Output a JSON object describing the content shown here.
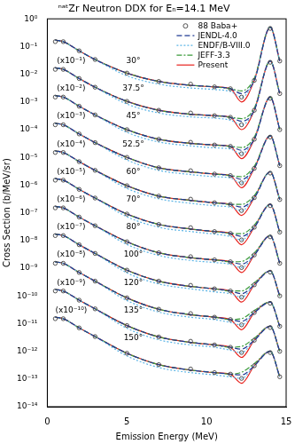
{
  "chart_data": {
    "type": "line",
    "title": "ⁿᵃᵗZr Neutron DDX for Eₙ=14.1 MeV",
    "x_label": "Emission Energy (MeV)",
    "y_label": "Cross Section (b/MeV/sr)",
    "log": "y",
    "grid": false,
    "legend": "upper right",
    "xlim": [
      0,
      15
    ],
    "xticks": [
      0,
      5,
      10,
      15
    ],
    "ylim": [
      1e-14,
      1
    ],
    "yticks": [
      {
        "value": 1,
        "label": "10⁰"
      },
      {
        "value": 0.1,
        "label": "10⁻¹"
      },
      {
        "value": 0.01,
        "label": "10⁻²"
      },
      {
        "value": 0.001,
        "label": "10⁻³"
      },
      {
        "value": 0.0001,
        "label": "10⁻⁴"
      },
      {
        "value": 1e-05,
        "label": "10⁻⁵"
      },
      {
        "value": 1e-06,
        "label": "10⁻⁶"
      },
      {
        "value": 1e-07,
        "label": "10⁻⁷"
      },
      {
        "value": 1e-08,
        "label": "10⁻⁸"
      },
      {
        "value": 1e-09,
        "label": "10⁻⁹"
      },
      {
        "value": 1e-10,
        "label": "10⁻¹⁰"
      },
      {
        "value": 1e-11,
        "label": "10⁻¹¹"
      },
      {
        "value": 1e-12,
        "label": "10⁻¹²"
      },
      {
        "value": 1e-13,
        "label": "10⁻¹³"
      },
      {
        "value": 1e-14,
        "label": "10⁻¹⁴"
      }
    ],
    "x": [
      0.5,
      1,
      2,
      3,
      5,
      7,
      9,
      10.5,
      11.5,
      12.2,
      13,
      14,
      14.6
    ],
    "series": [
      {
        "name": "88 Baba+",
        "color": "#404040",
        "marker": "circle",
        "line_style": "none",
        "values": [
          [
            0.15,
            0.15,
            0.07,
            0.034,
            0.011,
            0.0055,
            0.0044,
            0.0035,
            0.003,
            0.0015,
            0.006,
            0.45,
            0.03
          ],
          [
            0.015,
            0.015,
            0.007,
            0.0034,
            0.00105,
            0.0005,
            0.0004,
            0.00032,
            0.00028,
            0.00015,
            0.0005,
            0.027,
            0.002
          ],
          [
            0.0015,
            0.0015,
            0.0007,
            0.00034,
            0.0001,
            4.5e-05,
            3.5e-05,
            2.8e-05,
            2.5e-05,
            1.35e-05,
            4.5e-05,
            0.00135,
            0.0001
          ],
          [
            0.00015,
            0.00015,
            7e-05,
            3.4e-05,
            1e-05,
            4.2e-06,
            3.3e-06,
            2.5e-06,
            2.2e-06,
            1.2e-06,
            4e-06,
            5.4e-05,
            5e-06
          ],
          [
            1.5e-05,
            1.5e-05,
            7e-06,
            3.4e-06,
            9.5e-07,
            4e-07,
            3.1e-07,
            2.3e-07,
            2e-07,
            1.2e-07,
            3.5e-07,
            2.7e-06,
            3e-07
          ],
          [
            1.5e-06,
            1.5e-06,
            7e-07,
            3.4e-07,
            9e-08,
            3.8e-08,
            2.9e-08,
            2.1e-08,
            1.8e-08,
            1.05e-08,
            3e-08,
            1.8e-07,
            2e-08
          ],
          [
            1.5e-07,
            1.5e-07,
            7e-08,
            3.4e-08,
            9e-09,
            3.6e-09,
            2.6e-09,
            2e-09,
            1.7e-09,
            1.05e-09,
            3e-09,
            1.35e-08,
            1.5e-09
          ],
          [
            1.5e-08,
            1.5e-08,
            7e-09,
            3.4e-09,
            8.5e-10,
            3.4e-10,
            2.4e-10,
            1.8e-10,
            1.5e-10,
            9e-11,
            2.5e-10,
            7.2e-10,
            1e-10
          ],
          [
            1.5e-09,
            1.5e-09,
            7e-10,
            3.4e-10,
            8.5e-11,
            3.3e-11,
            2.3e-11,
            1.7e-11,
            1.4e-11,
            9e-12,
            2.5e-11,
            5.4e-11,
            8e-12
          ],
          [
            1.5e-10,
            1.5e-10,
            7e-11,
            3.4e-11,
            8.5e-12,
            3.3e-12,
            2.3e-12,
            1.7e-12,
            1.4e-12,
            9e-13,
            2.5e-12,
            7.2e-12,
            1e-12
          ],
          [
            1.5e-11,
            1.5e-11,
            7e-12,
            3.4e-12,
            8.5e-13,
            3.3e-13,
            2.3e-13,
            1.7e-13,
            1.5e-13,
            1.05e-13,
            3e-13,
            9e-13,
            1.2e-13
          ]
        ]
      },
      {
        "name": "JENDL-4.0",
        "color": "#1f3a93",
        "line_style": "dashed",
        "values": [
          [
            0.17,
            0.15,
            0.07,
            0.034,
            0.011,
            0.0055,
            0.004,
            0.0035,
            0.003,
            0.002,
            0.006,
            0.5,
            0.03
          ],
          [
            0.017,
            0.015,
            0.007,
            0.0034,
            0.00105,
            0.0005,
            0.00036,
            0.00032,
            0.00028,
            0.0002,
            0.0005,
            0.03,
            0.002
          ],
          [
            0.0017,
            0.0015,
            0.0007,
            0.00034,
            0.0001,
            4.5e-05,
            3.2e-05,
            2.8e-05,
            2.5e-05,
            1.8e-05,
            4.5e-05,
            0.0015,
            0.0001
          ],
          [
            0.00017,
            0.00015,
            7e-05,
            3.4e-05,
            1e-05,
            4.2e-06,
            3e-06,
            2.5e-06,
            2.2e-06,
            1.6e-06,
            4e-06,
            6e-05,
            5e-06
          ],
          [
            1.7e-05,
            1.5e-05,
            7e-06,
            3.4e-06,
            9.5e-07,
            4e-07,
            2.8e-07,
            2.3e-07,
            2e-07,
            1.6e-07,
            3.5e-07,
            3e-06,
            3e-07
          ],
          [
            1.7e-06,
            1.5e-06,
            7e-07,
            3.4e-07,
            9e-08,
            3.8e-08,
            2.6e-08,
            2.1e-08,
            1.8e-08,
            1.4e-08,
            3e-08,
            2e-07,
            2e-08
          ],
          [
            1.7e-07,
            1.5e-07,
            7e-08,
            3.4e-08,
            9e-09,
            3.6e-09,
            2.4e-09,
            2e-09,
            1.7e-09,
            1.4e-09,
            3e-09,
            1.5e-08,
            1.5e-09
          ],
          [
            1.7e-08,
            1.5e-08,
            7e-09,
            3.4e-09,
            8.5e-10,
            3.4e-10,
            2.2e-10,
            1.8e-10,
            1.5e-10,
            1.2e-10,
            2.5e-10,
            8e-10,
            1e-10
          ],
          [
            1.7e-09,
            1.5e-09,
            7e-10,
            3.4e-10,
            8.5e-11,
            3.3e-11,
            2.1e-11,
            1.7e-11,
            1.4e-11,
            1.2e-11,
            2.5e-11,
            6e-11,
            8e-12
          ],
          [
            1.7e-10,
            1.5e-10,
            7e-11,
            3.4e-11,
            8.5e-12,
            3.3e-12,
            2.1e-12,
            1.7e-12,
            1.4e-12,
            1.2e-12,
            2.5e-12,
            8e-12,
            1e-12
          ],
          [
            1.7e-11,
            1.5e-11,
            7e-12,
            3.4e-12,
            8.5e-13,
            3.3e-13,
            2.1e-13,
            1.7e-13,
            1.5e-13,
            1.4e-13,
            3e-13,
            1e-12,
            1.2e-13
          ]
        ]
      },
      {
        "name": "ENDF/B-VIII.0",
        "color": "#5ab4e6",
        "line_style": "dotted",
        "values": [
          [
            0.17,
            0.15,
            0.07,
            0.034,
            0.0088,
            0.0044,
            0.0032,
            0.0028,
            0.0024,
            0.0015,
            0.006,
            0.5,
            0.03
          ],
          [
            0.017,
            0.015,
            0.007,
            0.0034,
            0.00084,
            0.0004,
            0.00029,
            0.00026,
            0.00022,
            0.00015,
            0.0005,
            0.03,
            0.002
          ],
          [
            0.0017,
            0.0015,
            0.0007,
            0.00034,
            8e-05,
            3.6e-05,
            2.6e-05,
            2.2e-05,
            2e-05,
            1.35e-05,
            4.5e-05,
            0.0015,
            0.0001
          ],
          [
            0.00017,
            0.00015,
            7e-05,
            3.4e-05,
            8e-06,
            3.4e-06,
            2.4e-06,
            2e-06,
            1.8e-06,
            1.2e-06,
            4e-06,
            6e-05,
            5e-06
          ],
          [
            1.7e-05,
            1.5e-05,
            7e-06,
            3.4e-06,
            7.6e-07,
            3.2e-07,
            2.2e-07,
            1.8e-07,
            1.6e-07,
            1.2e-07,
            3.5e-07,
            3e-06,
            3e-07
          ],
          [
            1.7e-06,
            1.5e-06,
            7e-07,
            3.4e-07,
            7.2e-08,
            3e-08,
            2.1e-08,
            1.7e-08,
            1.4e-08,
            1.05e-08,
            3e-08,
            2e-07,
            2e-08
          ],
          [
            1.7e-07,
            1.5e-07,
            7e-08,
            3.4e-08,
            7.2e-09,
            2.9e-09,
            1.9e-09,
            1.6e-09,
            1.4e-09,
            1.05e-09,
            3e-09,
            1.5e-08,
            1.5e-09
          ],
          [
            1.7e-08,
            1.5e-08,
            7e-09,
            3.4e-09,
            6.8e-10,
            2.7e-10,
            1.8e-10,
            1.4e-10,
            1.2e-10,
            9e-11,
            2.5e-10,
            8e-10,
            1e-10
          ],
          [
            1.7e-09,
            1.5e-09,
            7e-10,
            3.4e-10,
            6.8e-11,
            2.6e-11,
            1.7e-11,
            1.4e-11,
            1.1e-11,
            9e-12,
            2.5e-11,
            6e-11,
            8e-12
          ],
          [
            1.7e-10,
            1.5e-10,
            7e-11,
            3.4e-11,
            6.8e-12,
            2.6e-12,
            1.7e-12,
            1.4e-12,
            1.1e-12,
            9e-13,
            2.5e-12,
            8e-12,
            1e-12
          ],
          [
            1.7e-11,
            1.5e-11,
            7e-12,
            3.4e-12,
            6.8e-13,
            2.6e-13,
            1.7e-13,
            1.4e-13,
            1.2e-13,
            1.05e-13,
            3e-13,
            1e-12,
            1.2e-13
          ]
        ]
      },
      {
        "name": "JEFF-3.3",
        "color": "#3a9a3a",
        "line_style": "dashdot",
        "values": [
          [
            0.17,
            0.15,
            0.07,
            0.034,
            0.011,
            0.0055,
            0.004,
            0.0035,
            0.003,
            0.0025,
            0.0072,
            0.5,
            0.03
          ],
          [
            0.017,
            0.015,
            0.007,
            0.0034,
            0.00105,
            0.0005,
            0.00036,
            0.00032,
            0.00028,
            0.00025,
            0.0006,
            0.03,
            0.002
          ],
          [
            0.0017,
            0.0015,
            0.0007,
            0.00034,
            0.0001,
            4.5e-05,
            3.2e-05,
            2.8e-05,
            2.5e-05,
            2.25e-05,
            5.4e-05,
            0.0015,
            0.0001
          ],
          [
            0.00017,
            0.00015,
            7e-05,
            3.4e-05,
            1e-05,
            4.2e-06,
            3e-06,
            2.5e-06,
            2.2e-06,
            2e-06,
            4.8e-06,
            6e-05,
            5e-06
          ],
          [
            1.7e-05,
            1.5e-05,
            7e-06,
            3.4e-06,
            9.5e-07,
            4e-07,
            2.8e-07,
            2.3e-07,
            2e-07,
            2e-07,
            4.2e-07,
            3e-06,
            3e-07
          ],
          [
            1.7e-06,
            1.5e-06,
            7e-07,
            3.4e-07,
            9e-08,
            3.8e-08,
            2.6e-08,
            2.1e-08,
            1.8e-08,
            1.75e-08,
            3.6e-08,
            2e-07,
            2e-08
          ],
          [
            1.7e-07,
            1.5e-07,
            7e-08,
            3.4e-08,
            9e-09,
            3.6e-09,
            2.4e-09,
            2e-09,
            1.7e-09,
            1.75e-09,
            3.6e-09,
            1.5e-08,
            1.5e-09
          ],
          [
            1.7e-08,
            1.5e-08,
            7e-09,
            3.4e-09,
            8.5e-10,
            3.4e-10,
            2.2e-10,
            1.8e-10,
            1.5e-10,
            1.5e-10,
            3e-10,
            8e-10,
            1e-10
          ],
          [
            1.7e-09,
            1.5e-09,
            7e-10,
            3.4e-10,
            8.5e-11,
            3.3e-11,
            2.1e-11,
            1.7e-11,
            1.4e-11,
            1.5e-11,
            3e-11,
            6e-11,
            8e-12
          ],
          [
            1.7e-10,
            1.5e-10,
            7e-11,
            3.4e-11,
            8.5e-12,
            3.3e-12,
            2.1e-12,
            1.7e-12,
            1.4e-12,
            1.5e-12,
            3e-12,
            8e-12,
            1e-12
          ],
          [
            1.7e-11,
            1.5e-11,
            7e-12,
            3.4e-12,
            8.5e-13,
            3.3e-13,
            2.1e-13,
            1.7e-13,
            1.5e-13,
            1.75e-13,
            3.6e-13,
            1e-12,
            1.2e-13
          ]
        ]
      },
      {
        "name": "Present",
        "color": "#e8211c",
        "line_style": "solid",
        "values": [
          [
            0.17,
            0.15,
            0.07,
            0.034,
            0.011,
            0.0055,
            0.004,
            0.0035,
            0.003,
            0.001,
            0.006,
            0.5,
            0.03
          ],
          [
            0.017,
            0.015,
            0.007,
            0.0034,
            0.00105,
            0.0005,
            0.00036,
            0.00032,
            0.00028,
            0.0001,
            0.0005,
            0.03,
            0.002
          ],
          [
            0.0017,
            0.0015,
            0.0007,
            0.00034,
            0.0001,
            4.5e-05,
            3.2e-05,
            2.8e-05,
            2.5e-05,
            9e-06,
            4.5e-05,
            0.0015,
            0.0001
          ],
          [
            0.00017,
            0.00015,
            7e-05,
            3.4e-05,
            1e-05,
            4.2e-06,
            3e-06,
            2.5e-06,
            2.2e-06,
            8e-07,
            4e-06,
            6e-05,
            5e-06
          ],
          [
            1.7e-05,
            1.5e-05,
            7e-06,
            3.4e-06,
            9.5e-07,
            4e-07,
            2.8e-07,
            2.3e-07,
            2e-07,
            8e-08,
            3.5e-07,
            3e-06,
            3e-07
          ],
          [
            1.7e-06,
            1.5e-06,
            7e-07,
            3.4e-07,
            9e-08,
            3.8e-08,
            2.6e-08,
            2.1e-08,
            1.8e-08,
            7e-09,
            3e-08,
            2e-07,
            2e-08
          ],
          [
            1.7e-07,
            1.5e-07,
            7e-08,
            3.4e-08,
            9e-09,
            3.6e-09,
            2.4e-09,
            2e-09,
            1.7e-09,
            7e-10,
            3e-09,
            1.5e-08,
            1.5e-09
          ],
          [
            1.7e-08,
            1.5e-08,
            7e-09,
            3.4e-09,
            8.5e-10,
            3.4e-10,
            2.2e-10,
            1.8e-10,
            1.5e-10,
            6e-11,
            2.5e-10,
            8e-10,
            1e-10
          ],
          [
            1.7e-09,
            1.5e-09,
            7e-10,
            3.4e-10,
            8.5e-11,
            3.3e-11,
            2.1e-11,
            1.7e-11,
            1.4e-11,
            6e-12,
            2.5e-11,
            6e-11,
            8e-12
          ],
          [
            1.7e-10,
            1.5e-10,
            7e-11,
            3.4e-11,
            8.5e-12,
            3.3e-12,
            2.1e-12,
            1.7e-12,
            1.4e-12,
            6e-13,
            2.5e-12,
            8e-12,
            1e-12
          ],
          [
            1.7e-11,
            1.5e-11,
            7e-12,
            3.4e-12,
            8.5e-13,
            3.3e-13,
            2.1e-13,
            1.7e-13,
            1.5e-13,
            7e-14,
            3e-13,
            1e-12,
            1.2e-13
          ]
        ]
      }
    ],
    "annotations": [
      {
        "text": "30°",
        "x": 5.4,
        "y": 0.03
      },
      {
        "text": "37.5°",
        "x": 5.4,
        "y": 0.003
      },
      {
        "text": "45°",
        "x": 5.4,
        "y": 0.0003
      },
      {
        "text": "52.5°",
        "x": 5.4,
        "y": 3e-05
      },
      {
        "text": "60°",
        "x": 5.4,
        "y": 3e-06
      },
      {
        "text": "70°",
        "x": 5.4,
        "y": 3e-07
      },
      {
        "text": "80°",
        "x": 5.4,
        "y": 3e-08
      },
      {
        "text": "100°",
        "x": 5.4,
        "y": 3e-09
      },
      {
        "text": "120°",
        "x": 5.4,
        "y": 3e-10
      },
      {
        "text": "135°",
        "x": 5.4,
        "y": 3e-11
      },
      {
        "text": "150°",
        "x": 5.4,
        "y": 3e-12
      },
      {
        "text": "(x10⁻¹)",
        "x": 1.5,
        "y": 0.03
      },
      {
        "text": "(x10⁻²)",
        "x": 1.5,
        "y": 0.003
      },
      {
        "text": "(x10⁻³)",
        "x": 1.5,
        "y": 0.0003
      },
      {
        "text": "(x10⁻⁴)",
        "x": 1.5,
        "y": 3e-05
      },
      {
        "text": "(x10⁻⁵)",
        "x": 1.5,
        "y": 3e-06
      },
      {
        "text": "(x10⁻⁶)",
        "x": 1.5,
        "y": 3e-07
      },
      {
        "text": "(x10⁻⁷)",
        "x": 1.5,
        "y": 3e-08
      },
      {
        "text": "(x10⁻⁸)",
        "x": 1.5,
        "y": 3e-09
      },
      {
        "text": "(x10⁻⁹)",
        "x": 1.5,
        "y": 3e-10
      },
      {
        "text": "(x10⁻¹⁰)",
        "x": 1.5,
        "y": 3e-11
      }
    ]
  }
}
